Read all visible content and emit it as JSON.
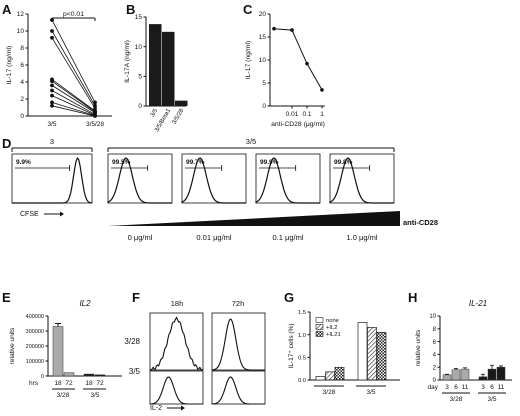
{
  "panels": {
    "A": "A",
    "B": "B",
    "C": "C",
    "D": "D",
    "E": "E",
    "F": "F",
    "G": "G",
    "H": "H"
  },
  "chart_data": [
    {
      "panel": "A",
      "type": "scatter",
      "ylabel": "IL-17 (ng/ml)",
      "ylim": [
        0,
        12
      ],
      "yticks": [
        0,
        2,
        4,
        6,
        8,
        10,
        12
      ],
      "categories": [
        "3/5",
        "3/5/28"
      ],
      "paired_values": [
        [
          11.3,
          1.6
        ],
        [
          10.0,
          1.2
        ],
        [
          9.2,
          0.9
        ],
        [
          4.3,
          0.6
        ],
        [
          4.1,
          0.5
        ],
        [
          3.6,
          0.4
        ],
        [
          3.0,
          0.2
        ],
        [
          2.4,
          0.1
        ],
        [
          1.6,
          0.05
        ],
        [
          1.2,
          0.0
        ]
      ],
      "annotation": "p<0.01"
    },
    {
      "panel": "B",
      "type": "bar",
      "ylabel": "IL-17A (ng/ml)",
      "ylim": [
        0,
        15
      ],
      "yticks": [
        0,
        5,
        10,
        15
      ],
      "categories": [
        "3/5",
        "3/5/Beta1",
        "3/5/28"
      ],
      "values": [
        13.8,
        12.5,
        0.9
      ]
    },
    {
      "panel": "C",
      "type": "line",
      "ylabel": "IL-17 (ng/ml)",
      "xlabel": "anti-CD28 (μg/ml)",
      "ylim": [
        0,
        20
      ],
      "yticks": [
        0,
        5,
        10,
        15,
        20
      ],
      "xticks": [
        "0.01",
        "0.1",
        "1"
      ],
      "x": [
        "",
        "0.01",
        "0.1",
        "1"
      ],
      "y": [
        16.8,
        16.5,
        9.2,
        3.5
      ]
    },
    {
      "panel": "D",
      "type": "histogram",
      "xlabel": "CFSE",
      "group_labels": [
        "3",
        "3/5"
      ],
      "gate_percents": [
        "9.9%",
        "99.5%",
        "99.7%",
        "99.9%",
        "99.8%"
      ],
      "doses": [
        "0 μg/ml",
        "0.01 μg/ml",
        "0.1 μg/ml",
        "1.0 μg/ml"
      ],
      "ramp_label": "anti-CD28"
    },
    {
      "panel": "E",
      "type": "bar",
      "title": "IL2",
      "ylabel": "relative units",
      "ylim": [
        0,
        400000
      ],
      "yticks": [
        "0",
        "100000",
        "200000",
        "300000",
        "400000"
      ],
      "xrow_label": "hrs",
      "categories": [
        "18",
        "72",
        "18",
        "72"
      ],
      "groups": [
        "3/28",
        "3/5"
      ],
      "values": [
        330000,
        22000,
        13000,
        8000
      ],
      "colors": [
        "#aaaaaa",
        "#aaaaaa",
        "#1a1a1a",
        "#1a1a1a"
      ]
    },
    {
      "panel": "F",
      "type": "histogram",
      "xlabel": "IL-2",
      "columns": [
        "18h",
        "72h"
      ],
      "rows": [
        "3/28",
        "3/5"
      ]
    },
    {
      "panel": "G",
      "type": "bar",
      "ylabel": "IL-17⁺ cells (%)",
      "ylim": [
        0,
        1.5
      ],
      "yticks": [
        "0.0",
        "0.5",
        "1.0",
        "1.5"
      ],
      "groups": [
        "3/28",
        "3/5"
      ],
      "series": [
        {
          "name": "none",
          "values": [
            0.08,
            1.27
          ]
        },
        {
          "name": "+IL2",
          "values": [
            0.18,
            1.16
          ]
        },
        {
          "name": "+IL21",
          "values": [
            0.28,
            1.05
          ]
        }
      ]
    },
    {
      "panel": "H",
      "type": "bar",
      "title": "IL-21",
      "ylabel": "relative units",
      "ylim": [
        0,
        10
      ],
      "yticks": [
        "0",
        "2",
        "4",
        "6",
        "8",
        "10"
      ],
      "xrow_label": "day",
      "categories": [
        "3",
        "6",
        "11",
        "3",
        "6",
        "11"
      ],
      "groups": [
        "3/28",
        "3/5"
      ],
      "values": [
        0.8,
        1.6,
        1.7,
        0.5,
        1.7,
        2.0
      ],
      "errors": [
        0.1,
        0.2,
        0.2,
        0.4,
        0.6,
        0.2
      ],
      "colors": [
        "#aaaaaa",
        "#aaaaaa",
        "#aaaaaa",
        "#1a1a1a",
        "#1a1a1a",
        "#1a1a1a"
      ]
    }
  ]
}
